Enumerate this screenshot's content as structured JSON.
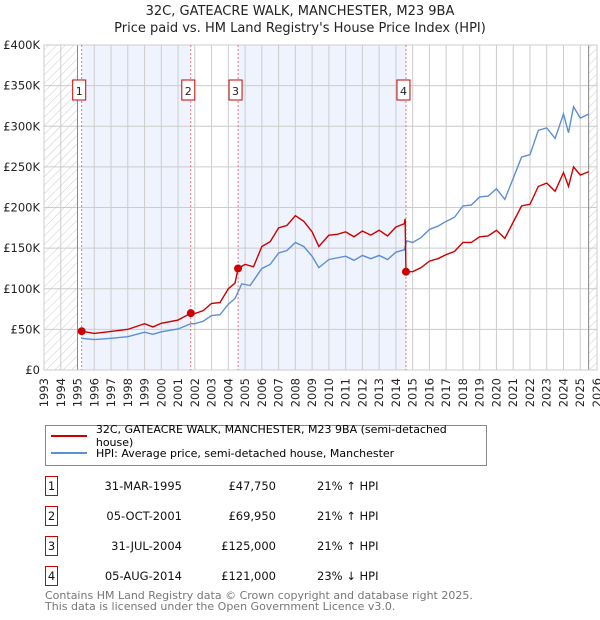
{
  "chart_data": {
    "type": "line",
    "title": "32C, GATEACRE WALK, MANCHESTER, M23 9BA",
    "subtitle": "Price paid vs. HM Land Registry's House Price Index (HPI)",
    "xlim": [
      1993,
      2026
    ],
    "ylim": [
      0,
      400000
    ],
    "x_ticks": [
      "1993",
      "1994",
      "1995",
      "1996",
      "1997",
      "1998",
      "1999",
      "2000",
      "2001",
      "2002",
      "2003",
      "2004",
      "2005",
      "2006",
      "2007",
      "2008",
      "2009",
      "2010",
      "2011",
      "2012",
      "2013",
      "2014",
      "2015",
      "2016",
      "2017",
      "2018",
      "2019",
      "2020",
      "2021",
      "2022",
      "2023",
      "2024",
      "2025",
      "2026"
    ],
    "y_ticks": [
      {
        "v": 0,
        "label": "£0"
      },
      {
        "v": 50000,
        "label": "£50K"
      },
      {
        "v": 100000,
        "label": "£100K"
      },
      {
        "v": 150000,
        "label": "£150K"
      },
      {
        "v": 200000,
        "label": "£200K"
      },
      {
        "v": 250000,
        "label": "£250K"
      },
      {
        "v": 300000,
        "label": "£300K"
      },
      {
        "v": 350000,
        "label": "£350K"
      },
      {
        "v": 400000,
        "label": "£400K"
      }
    ],
    "grid": true,
    "series": [
      {
        "name": "32C, GATEACRE WALK, MANCHESTER, M23 9BA (semi-detached house)",
        "color": "#cc0000",
        "points": [
          [
            1995.25,
            47750
          ],
          [
            1996,
            45000
          ],
          [
            1997,
            47500
          ],
          [
            1998,
            50000
          ],
          [
            1999,
            57000
          ],
          [
            1999.5,
            53000
          ],
          [
            2000,
            57500
          ],
          [
            2001,
            61500
          ],
          [
            2001.76,
            69950
          ],
          [
            2002,
            69500
          ],
          [
            2002.5,
            73000
          ],
          [
            2003,
            82000
          ],
          [
            2003.5,
            83000
          ],
          [
            2004,
            100000
          ],
          [
            2004.4,
            107000
          ],
          [
            2004.58,
            125000
          ],
          [
            2005,
            130000
          ],
          [
            2005.5,
            127000
          ],
          [
            2006,
            152000
          ],
          [
            2006.5,
            158000
          ],
          [
            2007,
            175000
          ],
          [
            2007.5,
            178000
          ],
          [
            2008,
            190000
          ],
          [
            2008.5,
            183000
          ],
          [
            2009,
            170000
          ],
          [
            2009.4,
            152000
          ],
          [
            2010,
            166000
          ],
          [
            2010.5,
            167000
          ],
          [
            2011,
            170000
          ],
          [
            2011.5,
            164000
          ],
          [
            2012,
            171000
          ],
          [
            2012.5,
            166000
          ],
          [
            2013,
            172000
          ],
          [
            2013.5,
            165000
          ],
          [
            2014,
            176000
          ],
          [
            2014.5,
            180000
          ],
          [
            2014.55,
            186000
          ],
          [
            2014.6,
            121000
          ],
          [
            2015,
            121000
          ],
          [
            2015.5,
            126000
          ],
          [
            2016,
            134000
          ],
          [
            2016.5,
            137000
          ],
          [
            2017,
            142000
          ],
          [
            2017.5,
            146000
          ],
          [
            2018,
            157000
          ],
          [
            2018.5,
            157000
          ],
          [
            2019,
            164000
          ],
          [
            2019.5,
            165000
          ],
          [
            2020,
            172000
          ],
          [
            2020.5,
            162000
          ],
          [
            2021,
            182000
          ],
          [
            2021.5,
            202000
          ],
          [
            2022,
            204000
          ],
          [
            2022.5,
            226000
          ],
          [
            2023,
            230000
          ],
          [
            2023.5,
            220000
          ],
          [
            2024,
            243000
          ],
          [
            2024.3,
            226000
          ],
          [
            2024.6,
            250000
          ],
          [
            2025,
            240000
          ],
          [
            2025.5,
            244000
          ]
        ]
      },
      {
        "name": "HPI: Average price, semi-detached house, Manchester",
        "color": "#5b8fd4",
        "points": [
          [
            1995.25,
            39000
          ],
          [
            1996,
            37500
          ],
          [
            1997,
            39000
          ],
          [
            1998,
            41000
          ],
          [
            1999,
            46500
          ],
          [
            1999.5,
            44000
          ],
          [
            2000,
            47000
          ],
          [
            2001,
            50500
          ],
          [
            2001.76,
            57000
          ],
          [
            2002,
            57000
          ],
          [
            2002.5,
            60000
          ],
          [
            2003,
            67000
          ],
          [
            2003.5,
            68000
          ],
          [
            2004,
            81000
          ],
          [
            2004.4,
            88000
          ],
          [
            2004.8,
            106000
          ],
          [
            2005.3,
            104000
          ],
          [
            2006,
            125000
          ],
          [
            2006.5,
            130000
          ],
          [
            2007,
            144000
          ],
          [
            2007.5,
            147000
          ],
          [
            2008,
            157000
          ],
          [
            2008.5,
            152000
          ],
          [
            2009,
            140000
          ],
          [
            2009.4,
            126000
          ],
          [
            2010,
            136000
          ],
          [
            2010.5,
            138000
          ],
          [
            2011,
            140000
          ],
          [
            2011.5,
            135000
          ],
          [
            2012,
            141000
          ],
          [
            2012.5,
            137000
          ],
          [
            2013,
            141000
          ],
          [
            2013.5,
            136000
          ],
          [
            2014,
            145000
          ],
          [
            2014.5,
            148000
          ],
          [
            2014.65,
            159000
          ],
          [
            2015,
            157000
          ],
          [
            2015.5,
            163000
          ],
          [
            2016,
            173000
          ],
          [
            2016.5,
            177000
          ],
          [
            2017,
            183000
          ],
          [
            2017.5,
            188000
          ],
          [
            2018,
            202000
          ],
          [
            2018.5,
            203000
          ],
          [
            2019,
            213000
          ],
          [
            2019.5,
            214000
          ],
          [
            2020,
            223000
          ],
          [
            2020.5,
            210000
          ],
          [
            2021,
            236000
          ],
          [
            2021.5,
            262000
          ],
          [
            2022,
            265000
          ],
          [
            2022.5,
            295000
          ],
          [
            2023,
            298000
          ],
          [
            2023.5,
            285000
          ],
          [
            2024,
            315000
          ],
          [
            2024.3,
            292000
          ],
          [
            2024.6,
            324000
          ],
          [
            2025,
            310000
          ],
          [
            2025.5,
            315000
          ]
        ]
      }
    ],
    "sales": [
      {
        "n": "1",
        "x": 1995.25,
        "price": 47750,
        "date": "31-MAR-1995",
        "price_label": "£47,750",
        "hpi": "21% ↑ HPI"
      },
      {
        "n": "2",
        "x": 2001.76,
        "price": 69950,
        "date": "05-OCT-2001",
        "price_label": "£69,950",
        "hpi": "21% ↑ HPI"
      },
      {
        "n": "3",
        "x": 2004.58,
        "price": 125000,
        "date": "31-JUL-2004",
        "price_label": "£125,000",
        "hpi": "21% ↑ HPI"
      },
      {
        "n": "4",
        "x": 2014.6,
        "price": 121000,
        "date": "05-AUG-2014",
        "price_label": "£121,000",
        "hpi": "23% ↓ HPI"
      }
    ],
    "shaded_ranges": [
      [
        1995.25,
        2001.76
      ],
      [
        2004.58,
        2014.6
      ]
    ],
    "hatched_ranges": [
      [
        1993,
        1995
      ],
      [
        2025.5,
        2026
      ]
    ],
    "legend": "below"
  },
  "footer": {
    "line1": "Contains HM Land Registry data © Crown copyright and database right 2025.",
    "line2": "This data is licensed under the Open Government Licence v3.0."
  }
}
